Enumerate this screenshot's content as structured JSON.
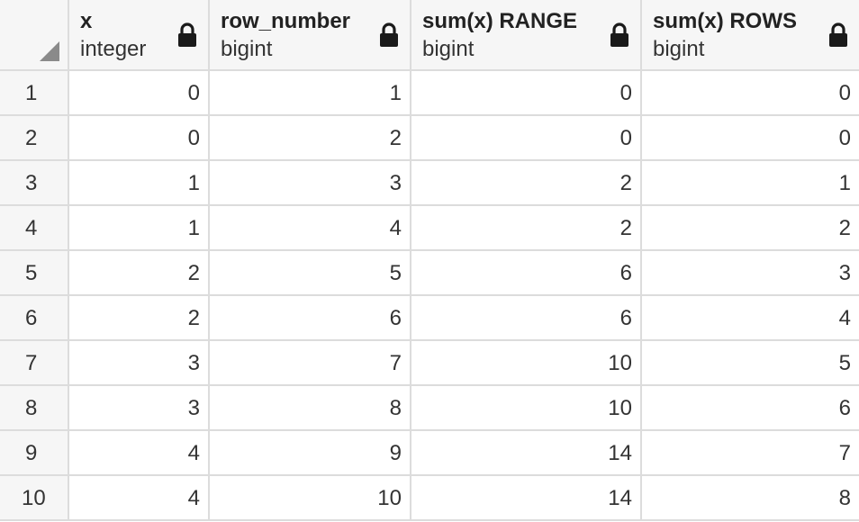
{
  "grid": {
    "columns": [
      {
        "name": "x",
        "type": "integer",
        "icon": "lock-icon"
      },
      {
        "name": "row_number",
        "type": "bigint",
        "icon": "lock-icon"
      },
      {
        "name": "sum(x) RANGE",
        "type": "bigint",
        "icon": "lock-icon"
      },
      {
        "name": "sum(x) ROWS",
        "type": "bigint",
        "icon": "lock-icon"
      }
    ],
    "rows": [
      {
        "n": "1",
        "x": "0",
        "row_number": "1",
        "range": "0",
        "rows": "0"
      },
      {
        "n": "2",
        "x": "0",
        "row_number": "2",
        "range": "0",
        "rows": "0"
      },
      {
        "n": "3",
        "x": "1",
        "row_number": "3",
        "range": "2",
        "rows": "1"
      },
      {
        "n": "4",
        "x": "1",
        "row_number": "4",
        "range": "2",
        "rows": "2"
      },
      {
        "n": "5",
        "x": "2",
        "row_number": "5",
        "range": "6",
        "rows": "3"
      },
      {
        "n": "6",
        "x": "2",
        "row_number": "6",
        "range": "6",
        "rows": "4"
      },
      {
        "n": "7",
        "x": "3",
        "row_number": "7",
        "range": "10",
        "rows": "5"
      },
      {
        "n": "8",
        "x": "3",
        "row_number": "8",
        "range": "10",
        "rows": "6"
      },
      {
        "n": "9",
        "x": "4",
        "row_number": "9",
        "range": "14",
        "rows": "7"
      },
      {
        "n": "10",
        "x": "4",
        "row_number": "10",
        "range": "14",
        "rows": "8"
      }
    ]
  }
}
